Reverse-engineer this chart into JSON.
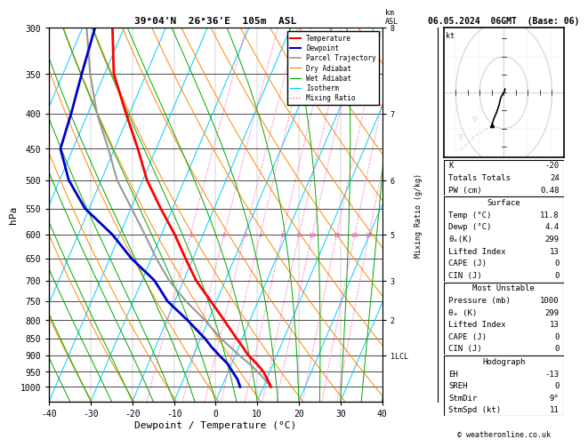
{
  "title_left": "39°04'N  26°36'E  105m  ASL",
  "title_right": "06.05.2024  06GMT  (Base: 06)",
  "xlabel": "Dewpoint / Temperature (°C)",
  "ylabel_left": "hPa",
  "xlim": [
    -40,
    40
  ],
  "pressure_ticks": [
    300,
    350,
    400,
    450,
    500,
    550,
    600,
    650,
    700,
    750,
    800,
    850,
    900,
    950,
    1000
  ],
  "temp_profile": {
    "pressure": [
      1000,
      975,
      950,
      925,
      900,
      875,
      850,
      800,
      750,
      700,
      650,
      600,
      550,
      500,
      450,
      400,
      350,
      300
    ],
    "temp": [
      11.8,
      10.2,
      8.4,
      6.0,
      3.2,
      1.0,
      -1.4,
      -6.2,
      -11.4,
      -17.0,
      -21.8,
      -26.8,
      -32.8,
      -39.0,
      -44.4,
      -50.8,
      -57.8,
      -62.8
    ],
    "color": "#ff0000",
    "lw": 2.0
  },
  "dewpoint_profile": {
    "pressure": [
      1000,
      975,
      950,
      925,
      900,
      875,
      850,
      800,
      750,
      700,
      650,
      600,
      550,
      500,
      450,
      400,
      350,
      300
    ],
    "temp": [
      4.4,
      3.0,
      1.0,
      -1.0,
      -3.8,
      -6.5,
      -9.0,
      -15.0,
      -21.8,
      -27.0,
      -34.8,
      -41.8,
      -51.0,
      -57.8,
      -63.0,
      -64.0,
      -65.5,
      -67.0
    ],
    "color": "#0000cc",
    "lw": 2.0
  },
  "parcel_trajectory": {
    "pressure": [
      1000,
      975,
      950,
      925,
      900,
      875,
      850,
      800,
      750,
      700,
      650,
      600,
      550,
      500,
      450,
      400,
      350,
      300
    ],
    "temp": [
      11.8,
      9.5,
      7.0,
      4.2,
      1.0,
      -2.0,
      -5.2,
      -10.8,
      -17.4,
      -23.5,
      -28.8,
      -34.0,
      -39.8,
      -46.2,
      -51.5,
      -57.8,
      -63.5,
      -69.0
    ],
    "color": "#999999",
    "lw": 1.5
  },
  "isotherm_color": "#00ccff",
  "isotherm_lw": 0.7,
  "dry_adiabat_color": "#ff8800",
  "dry_adiabat_lw": 0.7,
  "wet_adiabat_color": "#00aa00",
  "wet_adiabat_lw": 0.7,
  "mixing_ratio_color": "#ff44aa",
  "mixing_ratio_lw": 0.7,
  "mixing_ratio_values": [
    1,
    2,
    3,
    4,
    6,
    8,
    10,
    15,
    20,
    25
  ],
  "mixing_ratio_labels": [
    "1",
    "2",
    "3",
    "4",
    "6",
    "8",
    "10",
    "15",
    "20",
    "25"
  ],
  "legend_items": [
    {
      "label": "Temperature",
      "color": "#ff0000",
      "lw": 1.5,
      "ls": "-"
    },
    {
      "label": "Dewpoint",
      "color": "#0000cc",
      "lw": 1.5,
      "ls": "-"
    },
    {
      "label": "Parcel Trajectory",
      "color": "#999999",
      "lw": 1.2,
      "ls": "-"
    },
    {
      "label": "Dry Adiabat",
      "color": "#ff8800",
      "lw": 0.9,
      "ls": "-"
    },
    {
      "label": "Wet Adiabat",
      "color": "#00aa00",
      "lw": 0.9,
      "ls": "-"
    },
    {
      "label": "Isotherm",
      "color": "#00ccff",
      "lw": 0.9,
      "ls": "-"
    },
    {
      "label": "Mixing Ratio",
      "color": "#ff44aa",
      "lw": 0.9,
      "ls": ":"
    }
  ],
  "km_ticks_p": [
    300,
    400,
    500,
    600,
    700,
    800,
    900
  ],
  "km_ticks_label": [
    "8",
    "7",
    "6",
    "5",
    "3",
    "2",
    "1LCL"
  ],
  "right_panel": {
    "stats": [
      {
        "label": "K",
        "value": "-20"
      },
      {
        "label": "Totals Totals",
        "value": "24"
      },
      {
        "label": "PW (cm)",
        "value": "0.48"
      }
    ],
    "surface_title": "Surface",
    "surface": [
      {
        "label": "Temp (°C)",
        "value": "11.8"
      },
      {
        "label": "Dewp (°C)",
        "value": "4.4"
      },
      {
        "label": "θₑ(K)",
        "value": "299"
      },
      {
        "label": "Lifted Index",
        "value": "13"
      },
      {
        "label": "CAPE (J)",
        "value": "0"
      },
      {
        "label": "CIN (J)",
        "value": "0"
      }
    ],
    "unstable_title": "Most Unstable",
    "unstable": [
      {
        "label": "Pressure (mb)",
        "value": "1000"
      },
      {
        "label": "θₑ (K)",
        "value": "299"
      },
      {
        "label": "Lifted Index",
        "value": "13"
      },
      {
        "label": "CAPE (J)",
        "value": "0"
      },
      {
        "label": "CIN (J)",
        "value": "0"
      }
    ],
    "hodograph_section_title": "Hodograph",
    "hodograph_data": [
      {
        "label": "EH",
        "value": "-13"
      },
      {
        "label": "SREH",
        "value": "0"
      },
      {
        "label": "StmDir",
        "value": "9°"
      },
      {
        "label": "StmSpd (kt)",
        "value": "11"
      }
    ]
  },
  "footer": "© weatheronline.co.uk"
}
